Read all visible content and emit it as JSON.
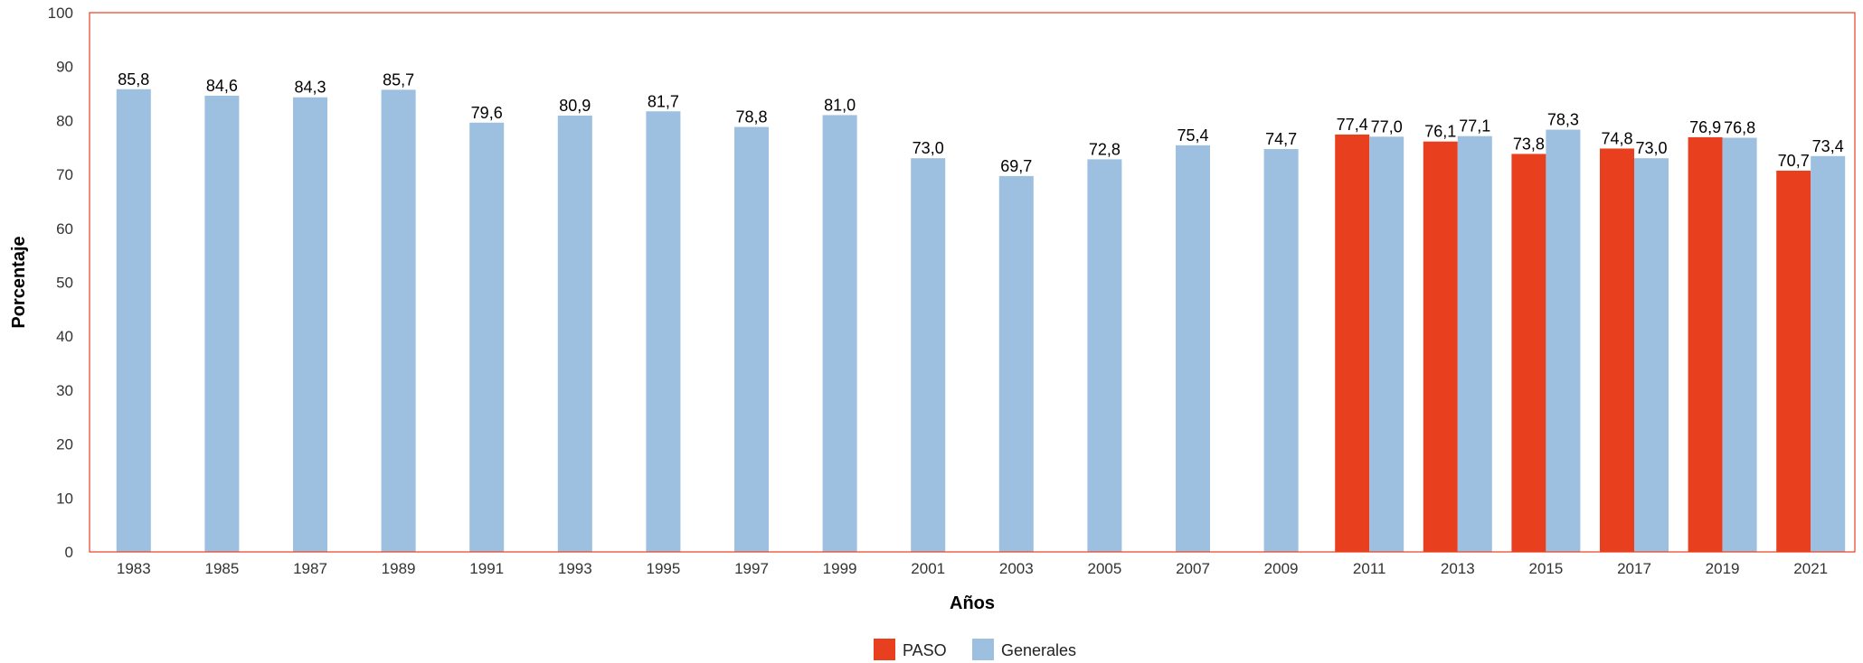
{
  "chart_data": {
    "type": "bar",
    "xlabel": "Años",
    "ylabel": "Porcentaje",
    "ylim": [
      0,
      100
    ],
    "yticks": [
      0,
      10,
      20,
      30,
      40,
      50,
      60,
      70,
      80,
      90,
      100
    ],
    "categories": [
      "1983",
      "1985",
      "1987",
      "1989",
      "1991",
      "1993",
      "1995",
      "1997",
      "1999",
      "2001",
      "2003",
      "2005",
      "2007",
      "2009",
      "2011",
      "2013",
      "2015",
      "2017",
      "2019",
      "2021"
    ],
    "series": [
      {
        "name": "PASO",
        "color": "#E8401F",
        "values": [
          null,
          null,
          null,
          null,
          null,
          null,
          null,
          null,
          null,
          null,
          null,
          null,
          null,
          null,
          77.4,
          76.1,
          73.8,
          74.8,
          76.9,
          70.7
        ],
        "labels": [
          null,
          null,
          null,
          null,
          null,
          null,
          null,
          null,
          null,
          null,
          null,
          null,
          null,
          null,
          "77,4",
          "76,1",
          "73,8",
          "74,8",
          "76,9",
          "70,7"
        ]
      },
      {
        "name": "Generales",
        "color": "#9DBFE0",
        "values": [
          85.8,
          84.6,
          84.3,
          85.7,
          79.6,
          80.9,
          81.7,
          78.8,
          81.0,
          73.0,
          69.7,
          72.8,
          75.4,
          74.7,
          77.0,
          77.1,
          78.3,
          73.0,
          76.8,
          73.4
        ],
        "labels": [
          "85,8",
          "84,6",
          "84,3",
          "85,7",
          "79,6",
          "80,9",
          "81,7",
          "78,8",
          "81,0",
          "73,0",
          "69,7",
          "72,8",
          "75,4",
          "74,7",
          "77,0",
          "77,1",
          "78,3",
          "73,0",
          "76,8",
          "73,4"
        ]
      }
    ],
    "legend_position": "bottom-center",
    "frame_color": "#E8401F",
    "grid": false
  }
}
